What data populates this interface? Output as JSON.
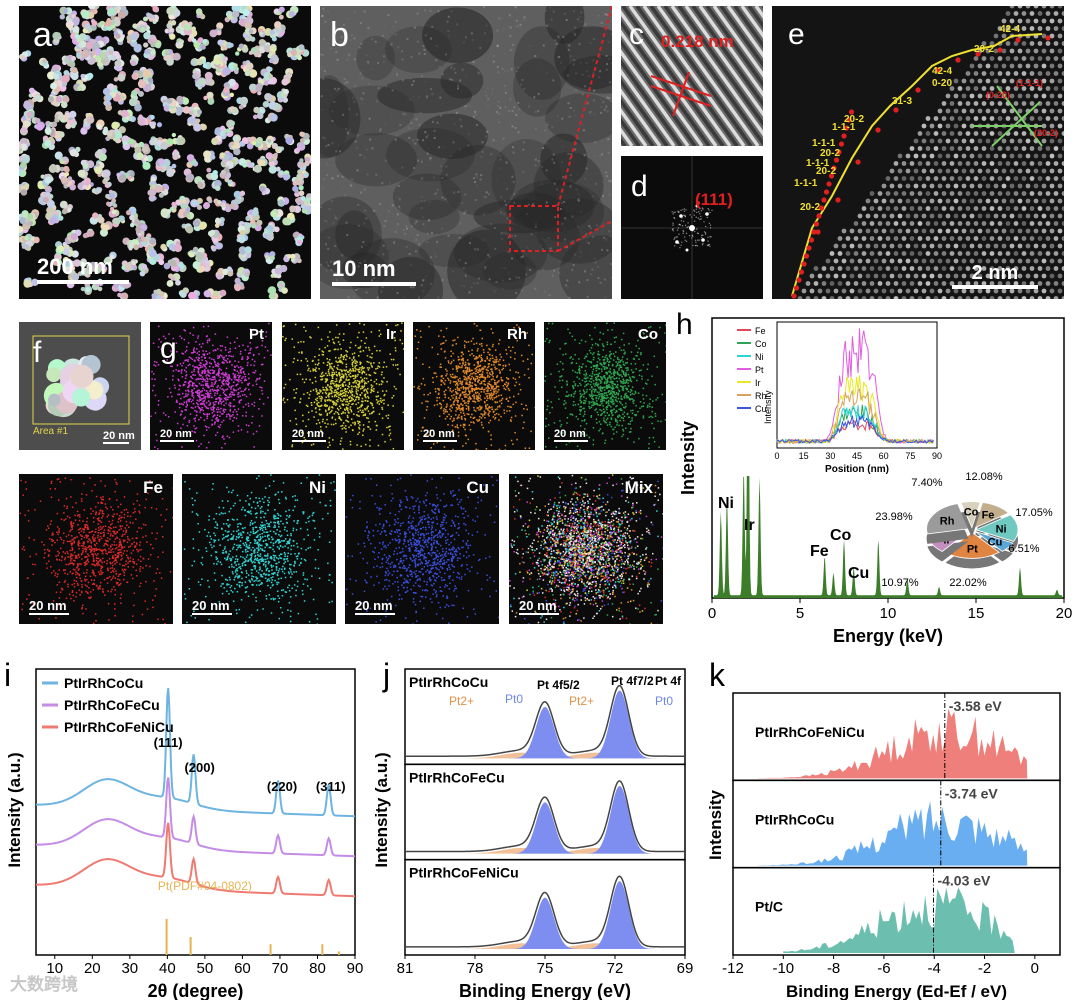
{
  "panels": {
    "a": {
      "label": "a",
      "scale": "200 nm"
    },
    "b": {
      "label": "b",
      "scale": "10 nm"
    },
    "c": {
      "label": "c",
      "annotation": "0.218 nm"
    },
    "d": {
      "label": "d",
      "annotation": "(111)"
    },
    "e": {
      "label": "e",
      "scale": "2 nm",
      "step_labels": [
        "1-1-1",
        "20-2",
        "1-1-1",
        "20-2",
        "1-1-1",
        "20-2",
        "1-1-1",
        "20-2",
        "31-3",
        "42-4",
        "0-20",
        "20-2",
        "42-4"
      ],
      "zone_labels": [
        "(1-1-1)",
        "(0-20)",
        "(20-2)"
      ]
    },
    "f": {
      "label": "f",
      "area": "Area #1",
      "scale": "20 nm"
    },
    "g": {
      "label": "g"
    },
    "maps": [
      {
        "element": "Pt",
        "scale": "20 nm",
        "color": "#d23cd8"
      },
      {
        "element": "Ir",
        "scale": "20 nm",
        "color": "#d8d23a"
      },
      {
        "element": "Rh",
        "scale": "20 nm",
        "color": "#e48a2a"
      },
      {
        "element": "Co",
        "scale": "20 nm",
        "color": "#2fa84f"
      },
      {
        "element": "Fe",
        "scale": "20 nm",
        "color": "#e02a2a"
      },
      {
        "element": "Ni",
        "scale": "20 nm",
        "color": "#33d6d6"
      },
      {
        "element": "Cu",
        "scale": "20 nm",
        "color": "#3a4fe0"
      },
      {
        "element": "Mix",
        "scale": "20 nm",
        "color": "#ffffff"
      }
    ]
  },
  "chart_data": [
    {
      "panel": "h",
      "type": "area",
      "xlabel": "Energy (keV)",
      "ylabel": "Intensity",
      "xlim": [
        0,
        20
      ],
      "xticks": [
        "0",
        "5",
        "10",
        "15",
        "20"
      ],
      "peaks": [
        {
          "x": 0.5,
          "y": 0.3
        },
        {
          "x": 0.85,
          "y": 0.35
        },
        {
          "x": 1.8,
          "y": 0.45
        },
        {
          "x": 2.05,
          "y": 0.93
        },
        {
          "x": 2.7,
          "y": 0.42
        },
        {
          "x": 6.4,
          "y": 0.14
        },
        {
          "x": 6.9,
          "y": 0.08
        },
        {
          "x": 7.5,
          "y": 0.2
        },
        {
          "x": 8.05,
          "y": 0.1
        },
        {
          "x": 9.45,
          "y": 0.2
        },
        {
          "x": 11.1,
          "y": 0.06
        },
        {
          "x": 12.9,
          "y": 0.03
        },
        {
          "x": 17.5,
          "y": 0.1
        },
        {
          "x": 19.6,
          "y": 0.02
        }
      ],
      "peak_labels": [
        "Pt",
        "Rh",
        "Ni",
        "Ir",
        "Fe",
        "Co",
        "Cu"
      ],
      "inset": {
        "type": "line",
        "xlabel": "Position (nm)",
        "ylabel": "Intensity",
        "xlim": [
          0,
          90
        ],
        "xticks": [
          "0",
          "15",
          "30",
          "45",
          "60",
          "75",
          "90"
        ],
        "legend": [
          "Fe",
          "Co",
          "Ni",
          "Pt",
          "Ir",
          "Rh",
          "Cu"
        ],
        "colors": [
          "#e0495c",
          "#31a354",
          "#2ed3d3",
          "#e25ce0",
          "#e8e829",
          "#d8a35a",
          "#3b55e0"
        ],
        "amplitudes": [
          0.18,
          0.3,
          0.32,
          0.95,
          0.55,
          0.45,
          0.22
        ]
      },
      "pie": {
        "type": "pie",
        "slices": [
          {
            "label": "Fe",
            "value": 12.08,
            "color": "#c2ae8c"
          },
          {
            "label": "Ni",
            "value": 17.05,
            "color": "#6fc9c0"
          },
          {
            "label": "Cu",
            "value": 6.51,
            "color": "#5aa6d6"
          },
          {
            "label": "Pt",
            "value": 22.02,
            "color": "#e08442"
          },
          {
            "label": "Ir",
            "value": 10.97,
            "color": "#c48fbe"
          },
          {
            "label": "Rh",
            "value": 23.98,
            "color": "#9b9b9b"
          },
          {
            "label": "Co",
            "value": 7.4,
            "color": "#d7d1bd"
          }
        ],
        "value_labels": [
          "12.08%",
          "17.05%",
          "6.51%",
          "22.02%",
          "10.97%",
          "23.98%",
          "7.40%"
        ]
      }
    },
    {
      "panel": "i",
      "type": "line",
      "xlabel": "2θ (degree)",
      "ylabel": "Intensity (a.u.)",
      "xlim": [
        5,
        90
      ],
      "xticks": [
        "10",
        "20",
        "30",
        "40",
        "50",
        "60",
        "70",
        "80",
        "90"
      ],
      "series": [
        {
          "name": "PtIrRhCoCu",
          "color": "#6db4e0"
        },
        {
          "name": "PtIrRhCoFeCu",
          "color": "#c58ce6"
        },
        {
          "name": "PtIrRhCoFeNiCu",
          "color": "#ef7a72"
        }
      ],
      "peaks": [
        {
          "label": "(111)",
          "x": 40.2
        },
        {
          "label": "(200)",
          "x": 47.0
        },
        {
          "label": "(220)",
          "x": 69.5
        },
        {
          "label": "(311)",
          "x": 83.0
        }
      ],
      "reference": {
        "label": "Pt(PDF#04-0802)",
        "color": "#e5b451",
        "lines": [
          {
            "x": 39.8,
            "h": 1.0
          },
          {
            "x": 46.2,
            "h": 0.5
          },
          {
            "x": 67.5,
            "h": 0.3
          },
          {
            "x": 81.3,
            "h": 0.3
          },
          {
            "x": 85.7,
            "h": 0.1
          }
        ]
      }
    },
    {
      "panel": "j",
      "type": "area",
      "xlabel": "Binding Energy (eV)",
      "ylabel": "Intensity (a.u.)",
      "xlim": [
        81,
        69
      ],
      "xticks": [
        "81",
        "78",
        "75",
        "72",
        "69"
      ],
      "subplots": [
        "PtIrRhCoCu",
        "PtIrRhCoFeCu",
        "PtIrRhCoFeNiCu"
      ],
      "annotations": [
        "Pt 4f5/2",
        "Pt 4f7/2",
        "Pt 4f",
        "Pt2+",
        "Pt0",
        "Pt2+",
        "Pt0"
      ],
      "components": {
        "metal_color": "#7d8ef0",
        "oxide_color": "#efb07e"
      },
      "peaks": [
        {
          "x": 75.0
        },
        {
          "x": 71.8
        }
      ]
    },
    {
      "panel": "k",
      "type": "area",
      "xlabel": "Binding Energy (Ed-Ef / eV)",
      "ylabel": "Intensity",
      "xlim": [
        -12,
        1
      ],
      "xticks": [
        "-12",
        "-10",
        "-8",
        "-6",
        "-4",
        "-2",
        "0"
      ],
      "subplots": [
        {
          "name": "PtIrRhCoFeNiCu",
          "d_band": -3.58,
          "label": "-3.58 eV",
          "color": "#ef7f7b"
        },
        {
          "name": "PtIrRhCoCu",
          "d_band": -3.74,
          "label": "-3.74 eV",
          "color": "#6aaef2"
        },
        {
          "name": "Pt/C",
          "d_band": -4.03,
          "label": "-4.03 eV",
          "color": "#6cbfae"
        }
      ]
    }
  ],
  "labels": {
    "h": "h",
    "i": "i",
    "j": "j",
    "k": "k"
  },
  "watermark": "大数跨境"
}
